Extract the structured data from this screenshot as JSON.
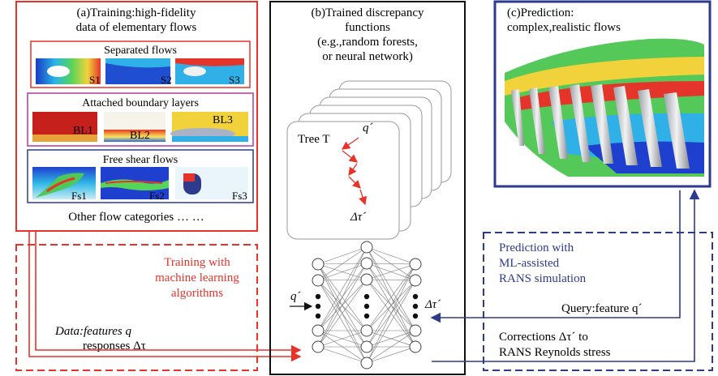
{
  "panel_a": {
    "title_line1": "(a)Training:high-fidelity",
    "title_line2": "data of elementary flows",
    "separated": {
      "title": "Separated flows",
      "labels": [
        "S1",
        "S2",
        "S3"
      ]
    },
    "attached": {
      "title": "Attached boundary layers",
      "labels": [
        "BL1",
        "BL2",
        "BL3"
      ]
    },
    "free_shear": {
      "title": "Free shear flows",
      "labels": [
        "Fs1",
        "Fs2",
        "Fs3"
      ]
    },
    "other": "Other flow categories … …"
  },
  "panel_b": {
    "title_line1": "(b)Trained discrepancy",
    "title_line2": "functions",
    "title_line3": "(e.g.,random forests,",
    "title_line4": "or neural network)",
    "tree_label": "Tree T",
    "tree_input": "q´",
    "tree_output": "Δτ´",
    "nn_input": "q´",
    "nn_output": "Δτ´"
  },
  "panel_c": {
    "title_line1": "(c)Prediction:",
    "title_line2": "complex,realistic flows"
  },
  "training_box": {
    "line1": "Training with",
    "line2": "machine learning",
    "line3": "algorithms",
    "data_line1": "Data:features q",
    "data_line2": "responses Δτ"
  },
  "prediction_box": {
    "line1": "Prediction with",
    "line2": "ML-assisted",
    "line3": "RANS simulation",
    "query": "Query:feature q´",
    "corr_line1": "Corrections Δτ´ to",
    "corr_line2": "RANS Reynolds stress"
  },
  "colors": {
    "red": "#e8322a",
    "blue": "#2e3a8c",
    "magenta": "#b03a9a",
    "black": "#111111"
  }
}
